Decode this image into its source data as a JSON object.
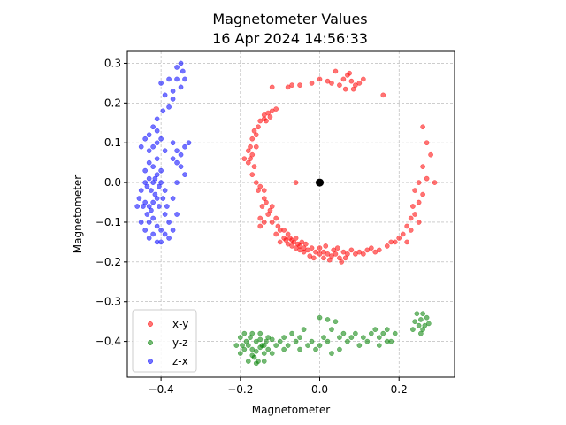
{
  "chart_data": {
    "type": "scatter",
    "title": "Magnetometer Values",
    "subtitle": "16 Apr 2024 14:56:33",
    "xlabel": "Magnetometer",
    "ylabel": "Magnetometer",
    "xlim": [
      -0.485,
      0.34
    ],
    "ylim": [
      -0.49,
      0.33
    ],
    "x_ticks": [
      -0.4,
      -0.2,
      0.0,
      0.2
    ],
    "x_tick_labels": [
      "−0.4",
      "−0.2",
      "0.0",
      "0.2"
    ],
    "y_ticks": [
      -0.4,
      -0.3,
      -0.2,
      -0.1,
      0.0,
      0.1,
      0.2,
      0.3
    ],
    "y_tick_labels": [
      "−0.4",
      "−0.3",
      "−0.2",
      "−0.1",
      "0.0",
      "0.1",
      "0.2",
      "0.3"
    ],
    "grid": true,
    "legend_position": "lower-left",
    "center_point": {
      "x": 0.0,
      "y": 0.0,
      "color": "#000000"
    },
    "series": [
      {
        "name": "x-y",
        "color": "#ff0000",
        "points": [
          [
            0.08,
            0.255
          ],
          [
            0.06,
            0.26
          ],
          [
            0.09,
            0.245
          ],
          [
            0.1,
            0.25
          ],
          [
            0.07,
            0.27
          ],
          [
            0.05,
            0.245
          ],
          [
            0.03,
            0.25
          ],
          [
            0.02,
            0.255
          ],
          [
            0.11,
            0.26
          ],
          [
            0.085,
            0.235
          ],
          [
            -0.02,
            0.25
          ],
          [
            -0.05,
            0.245
          ],
          [
            -0.07,
            0.245
          ],
          [
            -0.08,
            0.24
          ],
          [
            -0.12,
            0.24
          ],
          [
            0.16,
            0.22
          ],
          [
            0.0,
            0.26
          ],
          [
            0.04,
            0.28
          ],
          [
            0.075,
            0.275
          ],
          [
            0.065,
            0.235
          ],
          [
            -0.12,
            0.18
          ],
          [
            -0.13,
            0.175
          ],
          [
            -0.11,
            0.185
          ],
          [
            -0.125,
            0.165
          ],
          [
            -0.14,
            0.17
          ],
          [
            -0.14,
            0.16
          ],
          [
            -0.15,
            0.155
          ],
          [
            -0.135,
            0.155
          ],
          [
            -0.155,
            0.14
          ],
          [
            -0.165,
            0.13
          ],
          [
            -0.16,
            0.12
          ],
          [
            -0.17,
            0.11
          ],
          [
            -0.175,
            0.09
          ],
          [
            -0.16,
            0.09
          ],
          [
            -0.18,
            0.08
          ],
          [
            -0.17,
            0.07
          ],
          [
            -0.175,
            0.06
          ],
          [
            -0.18,
            0.05
          ],
          [
            -0.165,
            0.04
          ],
          [
            -0.19,
            0.06
          ],
          [
            -0.17,
            0.02
          ],
          [
            -0.16,
            0.0
          ],
          [
            -0.15,
            -0.01
          ],
          [
            -0.155,
            -0.02
          ],
          [
            -0.14,
            -0.02
          ],
          [
            -0.14,
            -0.04
          ],
          [
            -0.135,
            -0.05
          ],
          [
            -0.145,
            -0.06
          ],
          [
            -0.125,
            -0.07
          ],
          [
            -0.12,
            -0.06
          ],
          [
            -0.11,
            -0.09
          ],
          [
            -0.12,
            -0.1
          ],
          [
            -0.13,
            -0.08
          ],
          [
            -0.105,
            -0.11
          ],
          [
            -0.1,
            -0.12
          ],
          [
            -0.09,
            -0.12
          ],
          [
            -0.15,
            -0.09
          ],
          [
            -0.14,
            -0.1
          ],
          [
            -0.15,
            -0.11
          ],
          [
            -0.06,
            0.0
          ],
          [
            -0.08,
            -0.13
          ],
          [
            -0.075,
            -0.14
          ],
          [
            -0.07,
            -0.145
          ],
          [
            -0.065,
            -0.15
          ],
          [
            -0.06,
            -0.14
          ],
          [
            -0.055,
            -0.155
          ],
          [
            -0.05,
            -0.16
          ],
          [
            -0.045,
            -0.15
          ],
          [
            -0.04,
            -0.165
          ],
          [
            -0.035,
            -0.155
          ],
          [
            -0.085,
            -0.145
          ],
          [
            -0.08,
            -0.155
          ],
          [
            -0.07,
            -0.16
          ],
          [
            -0.06,
            -0.165
          ],
          [
            -0.05,
            -0.17
          ],
          [
            -0.04,
            -0.175
          ],
          [
            -0.03,
            -0.17
          ],
          [
            -0.02,
            -0.165
          ],
          [
            -0.01,
            -0.175
          ],
          [
            0.0,
            -0.18
          ],
          [
            0.01,
            -0.175
          ],
          [
            0.02,
            -0.18
          ],
          [
            0.03,
            -0.185
          ],
          [
            0.04,
            -0.18
          ],
          [
            0.05,
            -0.19
          ],
          [
            0.06,
            -0.175
          ],
          [
            0.07,
            -0.18
          ],
          [
            0.08,
            -0.17
          ],
          [
            0.09,
            -0.18
          ],
          [
            0.1,
            -0.175
          ],
          [
            0.01,
            -0.19
          ],
          [
            0.025,
            -0.195
          ],
          [
            0.035,
            -0.17
          ],
          [
            -0.025,
            -0.185
          ],
          [
            -0.015,
            -0.19
          ],
          [
            0.0,
            -0.165
          ],
          [
            0.015,
            -0.16
          ],
          [
            0.045,
            -0.165
          ],
          [
            0.055,
            -0.2
          ],
          [
            0.065,
            -0.19
          ],
          [
            0.11,
            -0.18
          ],
          [
            0.12,
            -0.17
          ],
          [
            0.13,
            -0.165
          ],
          [
            0.14,
            -0.175
          ],
          [
            0.15,
            -0.17
          ],
          [
            0.17,
            -0.16
          ],
          [
            0.19,
            -0.15
          ],
          [
            0.18,
            -0.15
          ],
          [
            0.2,
            -0.14
          ],
          [
            0.21,
            -0.13
          ],
          [
            0.22,
            -0.11
          ],
          [
            0.23,
            -0.12
          ],
          [
            0.23,
            -0.09
          ],
          [
            0.24,
            -0.08
          ],
          [
            0.235,
            -0.06
          ],
          [
            0.25,
            -0.05
          ],
          [
            0.24,
            -0.02
          ],
          [
            0.26,
            -0.03
          ],
          [
            0.25,
            0.0
          ],
          [
            0.27,
            0.01
          ],
          [
            0.29,
            0.0
          ],
          [
            0.26,
            0.04
          ],
          [
            0.28,
            0.07
          ],
          [
            0.27,
            0.1
          ],
          [
            0.26,
            0.14
          ],
          [
            0.25,
            -0.1
          ],
          [
            0.22,
            -0.15
          ],
          [
            -0.1,
            -0.15
          ],
          [
            -0.09,
            -0.14
          ],
          [
            -0.11,
            -0.13
          ]
        ]
      },
      {
        "name": "y-z",
        "color": "#008000",
        "points": [
          [
            -0.18,
            -0.41
          ],
          [
            -0.17,
            -0.42
          ],
          [
            -0.16,
            -0.4
          ],
          [
            -0.15,
            -0.415
          ],
          [
            -0.14,
            -0.43
          ],
          [
            -0.19,
            -0.42
          ],
          [
            -0.2,
            -0.43
          ],
          [
            -0.175,
            -0.39
          ],
          [
            -0.165,
            -0.44
          ],
          [
            -0.155,
            -0.45
          ],
          [
            -0.145,
            -0.41
          ],
          [
            -0.135,
            -0.4
          ],
          [
            -0.185,
            -0.4
          ],
          [
            -0.195,
            -0.41
          ],
          [
            -0.17,
            -0.435
          ],
          [
            -0.16,
            -0.425
          ],
          [
            -0.15,
            -0.395
          ],
          [
            -0.14,
            -0.41
          ],
          [
            -0.13,
            -0.42
          ],
          [
            -0.12,
            -0.43
          ],
          [
            -0.11,
            -0.41
          ],
          [
            -0.12,
            -0.395
          ],
          [
            -0.18,
            -0.45
          ],
          [
            -0.16,
            -0.455
          ],
          [
            -0.14,
            -0.45
          ],
          [
            -0.21,
            -0.41
          ],
          [
            -0.2,
            -0.39
          ],
          [
            -0.19,
            -0.38
          ],
          [
            -0.17,
            -0.38
          ],
          [
            -0.15,
            -0.38
          ],
          [
            -0.13,
            -0.39
          ],
          [
            -0.1,
            -0.4
          ],
          [
            -0.09,
            -0.42
          ],
          [
            -0.08,
            -0.41
          ],
          [
            -0.06,
            -0.4
          ],
          [
            -0.05,
            -0.39
          ],
          [
            -0.03,
            -0.41
          ],
          [
            -0.02,
            -0.4
          ],
          [
            -0.07,
            -0.38
          ],
          [
            -0.04,
            -0.37
          ],
          [
            0.0,
            -0.41
          ],
          [
            0.01,
            -0.39
          ],
          [
            0.02,
            -0.4
          ],
          [
            0.03,
            -0.37
          ],
          [
            0.04,
            -0.35
          ],
          [
            0.05,
            -0.39
          ],
          [
            0.06,
            -0.38
          ],
          [
            0.08,
            -0.39
          ],
          [
            0.09,
            -0.38
          ],
          [
            0.07,
            -0.4
          ],
          [
            0.1,
            -0.41
          ],
          [
            0.11,
            -0.39
          ],
          [
            0.12,
            -0.4
          ],
          [
            0.13,
            -0.38
          ],
          [
            0.14,
            -0.37
          ],
          [
            0.15,
            -0.39
          ],
          [
            0.16,
            -0.38
          ],
          [
            0.17,
            -0.37
          ],
          [
            0.18,
            -0.4
          ],
          [
            0.19,
            -0.38
          ],
          [
            0.17,
            -0.4
          ],
          [
            0.15,
            -0.41
          ],
          [
            0.24,
            -0.35
          ],
          [
            0.25,
            -0.36
          ],
          [
            0.26,
            -0.37
          ],
          [
            0.27,
            -0.34
          ],
          [
            0.255,
            -0.38
          ],
          [
            0.245,
            -0.33
          ],
          [
            0.265,
            -0.36
          ],
          [
            0.235,
            -0.37
          ],
          [
            0.255,
            -0.345
          ],
          [
            0.275,
            -0.355
          ],
          [
            0.26,
            -0.33
          ],
          [
            0.0,
            -0.34
          ],
          [
            0.02,
            -0.345
          ],
          [
            -0.01,
            -0.42
          ],
          [
            0.05,
            -0.42
          ],
          [
            0.03,
            -0.43
          ],
          [
            -0.05,
            -0.42
          ],
          [
            -0.09,
            -0.39
          ]
        ]
      },
      {
        "name": "z-x",
        "color": "#0000ff",
        "points": [
          [
            -0.42,
            -0.05
          ],
          [
            -0.43,
            -0.06
          ],
          [
            -0.41,
            -0.04
          ],
          [
            -0.44,
            -0.05
          ],
          [
            -0.425,
            -0.07
          ],
          [
            -0.415,
            -0.03
          ],
          [
            -0.435,
            -0.08
          ],
          [
            -0.445,
            -0.06
          ],
          [
            -0.405,
            -0.06
          ],
          [
            -0.42,
            -0.09
          ],
          [
            -0.43,
            -0.1
          ],
          [
            -0.41,
            -0.11
          ],
          [
            -0.44,
            -0.12
          ],
          [
            -0.42,
            -0.13
          ],
          [
            -0.43,
            -0.14
          ],
          [
            -0.41,
            -0.15
          ],
          [
            -0.4,
            -0.12
          ],
          [
            -0.45,
            -0.1
          ],
          [
            -0.455,
            -0.04
          ],
          [
            -0.46,
            -0.06
          ],
          [
            -0.42,
            0.0
          ],
          [
            -0.43,
            0.01
          ],
          [
            -0.41,
            0.02
          ],
          [
            -0.44,
            0.03
          ],
          [
            -0.42,
            0.04
          ],
          [
            -0.43,
            0.05
          ],
          [
            -0.41,
            0.06
          ],
          [
            -0.4,
            0.0
          ],
          [
            -0.39,
            -0.02
          ],
          [
            -0.4,
            0.03
          ],
          [
            -0.44,
            0.0
          ],
          [
            -0.45,
            -0.02
          ],
          [
            -0.435,
            -0.01
          ],
          [
            -0.425,
            -0.02
          ],
          [
            -0.415,
            0.01
          ],
          [
            -0.405,
            -0.01
          ],
          [
            -0.395,
            -0.04
          ],
          [
            -0.385,
            -0.06
          ],
          [
            -0.39,
            -0.08
          ],
          [
            -0.38,
            -0.1
          ],
          [
            -0.43,
            0.08
          ],
          [
            -0.42,
            0.09
          ],
          [
            -0.41,
            0.1
          ],
          [
            -0.44,
            0.11
          ],
          [
            -0.43,
            0.12
          ],
          [
            -0.42,
            0.14
          ],
          [
            -0.4,
            0.11
          ],
          [
            -0.39,
            0.08
          ],
          [
            -0.41,
            0.13
          ],
          [
            -0.45,
            0.09
          ],
          [
            -0.37,
            0.1
          ],
          [
            -0.36,
            0.08
          ],
          [
            -0.35,
            0.07
          ],
          [
            -0.34,
            0.09
          ],
          [
            -0.33,
            0.1
          ],
          [
            -0.36,
            0.05
          ],
          [
            -0.35,
            0.04
          ],
          [
            -0.37,
            0.06
          ],
          [
            -0.34,
            0.02
          ],
          [
            -0.36,
            0.0
          ],
          [
            -0.38,
            0.19
          ],
          [
            -0.37,
            0.21
          ],
          [
            -0.35,
            0.24
          ],
          [
            -0.36,
            0.26
          ],
          [
            -0.38,
            0.26
          ],
          [
            -0.36,
            0.29
          ],
          [
            -0.35,
            0.3
          ],
          [
            -0.39,
            0.22
          ],
          [
            -0.34,
            0.26
          ],
          [
            -0.4,
            0.25
          ],
          [
            -0.37,
            0.23
          ],
          [
            -0.345,
            0.28
          ],
          [
            -0.395,
            0.18
          ],
          [
            -0.41,
            0.16
          ],
          [
            -0.4,
            -0.15
          ],
          [
            -0.38,
            -0.14
          ],
          [
            -0.39,
            -0.13
          ],
          [
            -0.37,
            -0.12
          ],
          [
            -0.36,
            -0.08
          ],
          [
            -0.37,
            -0.04
          ]
        ]
      }
    ]
  }
}
